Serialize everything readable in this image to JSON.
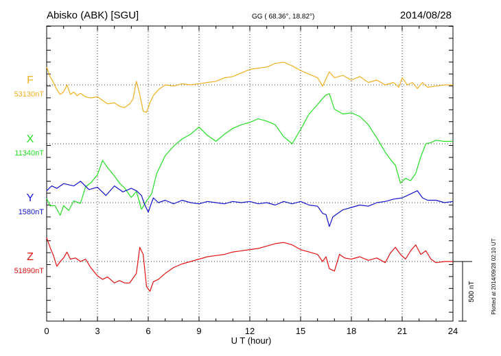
{
  "header": {
    "station": "Abisko (ABK)  [SGU]",
    "coords": "GG ( 68.36°,  18.82°)",
    "date": "2014/08/28"
  },
  "footer": {
    "plotted_note": "Plotted at 2014/09/28 02:10 UT"
  },
  "scale_bar": {
    "label": "500 nT",
    "value_nT": 500
  },
  "colors": {
    "F": "#f0b020",
    "X": "#22dd22",
    "Y": "#1010cc",
    "Z": "#e01010",
    "axis": "#000000",
    "grid": "#000000"
  },
  "chart_data": {
    "type": "line",
    "title": "",
    "xlabel": "U T (hour)",
    "ylabel": "",
    "xlim": [
      0,
      24
    ],
    "x_ticks": [
      "0",
      "3",
      "6",
      "9",
      "12",
      "15",
      "18",
      "21",
      "24"
    ],
    "grid": "dotted",
    "series": [
      {
        "name": "F",
        "baseline_label": "53130nT",
        "color": "#f0b020",
        "baseline_nT": 53130,
        "x": [
          0,
          0.2,
          0.4,
          0.6,
          0.8,
          1.0,
          1.2,
          1.4,
          1.6,
          1.8,
          2.0,
          2.3,
          2.6,
          3.0,
          3.3,
          3.6,
          4.0,
          4.3,
          4.6,
          4.9,
          5.1,
          5.3,
          5.5,
          5.7,
          5.9,
          6.1,
          6.3,
          6.6,
          7.0,
          7.5,
          8.0,
          8.5,
          9.0,
          9.5,
          10.0,
          10.5,
          11.0,
          11.5,
          12.0,
          12.5,
          13.0,
          13.5,
          14.0,
          14.5,
          15.0,
          15.5,
          16.0,
          16.3,
          16.5,
          16.7,
          17.0,
          17.5,
          18.0,
          18.5,
          19.0,
          19.5,
          20.0,
          20.5,
          20.8,
          21.0,
          21.3,
          21.6,
          21.9,
          22.2,
          22.5,
          23.0,
          23.5,
          24.0
        ],
        "values": [
          150,
          70,
          20,
          -40,
          -80,
          -60,
          0,
          -80,
          -60,
          -90,
          -70,
          -100,
          -110,
          -100,
          -130,
          -160,
          -150,
          -180,
          -190,
          -160,
          -120,
          30,
          -80,
          -220,
          -230,
          -150,
          -90,
          -40,
          0,
          -10,
          10,
          0,
          10,
          20,
          30,
          60,
          70,
          100,
          130,
          140,
          150,
          180,
          190,
          160,
          120,
          90,
          60,
          -10,
          50,
          110,
          60,
          80,
          40,
          70,
          20,
          40,
          0,
          20,
          -20,
          60,
          0,
          20,
          -30,
          20,
          -20,
          -10,
          0,
          0
        ]
      },
      {
        "name": "X",
        "baseline_label": "11340nT",
        "color": "#22dd22",
        "baseline_nT": 11340,
        "x": [
          0,
          0.2,
          0.5,
          0.8,
          1.0,
          1.3,
          1.6,
          2.0,
          2.3,
          2.6,
          3.0,
          3.3,
          3.6,
          4.0,
          4.3,
          4.6,
          5.0,
          5.3,
          5.6,
          5.9,
          6.2,
          6.5,
          7.0,
          7.5,
          8.0,
          8.5,
          9.0,
          9.5,
          10.0,
          10.5,
          11.0,
          11.5,
          12.0,
          12.5,
          13.0,
          13.5,
          14.0,
          14.5,
          15.0,
          15.5,
          16.0,
          16.3,
          16.5,
          16.7,
          17.0,
          17.5,
          18.0,
          18.5,
          19.0,
          19.5,
          20.0,
          20.3,
          20.6,
          20.9,
          21.2,
          21.5,
          21.8,
          22.1,
          22.4,
          22.7,
          23.0,
          23.5,
          24.0
        ],
        "values": [
          -460,
          -520,
          -520,
          -600,
          -520,
          -560,
          -480,
          -500,
          -360,
          -330,
          -260,
          -140,
          -200,
          -270,
          -330,
          -370,
          -450,
          -400,
          -550,
          -480,
          -420,
          -250,
          -100,
          -20,
          40,
          80,
          140,
          70,
          20,
          80,
          130,
          160,
          180,
          210,
          190,
          160,
          60,
          0,
          120,
          250,
          330,
          380,
          410,
          420,
          290,
          250,
          260,
          230,
          160,
          50,
          -70,
          -130,
          -180,
          -330,
          -290,
          -310,
          -250,
          -110,
          0,
          10,
          30,
          20,
          20
        ]
      },
      {
        "name": "Y",
        "baseline_label": "1580nT",
        "color": "#1010cc",
        "baseline_nT": 1580,
        "x": [
          0,
          0.3,
          0.6,
          1.0,
          1.3,
          1.6,
          2.0,
          2.5,
          3.0,
          3.5,
          4.0,
          4.5,
          5.0,
          5.3,
          5.6,
          5.8,
          6.0,
          6.3,
          6.6,
          7.0,
          7.5,
          8.0,
          8.5,
          9.0,
          9.5,
          10.0,
          10.5,
          11.0,
          11.5,
          12.0,
          12.5,
          13.0,
          13.5,
          14.0,
          14.5,
          15.0,
          15.5,
          16.0,
          16.3,
          16.5,
          16.7,
          16.9,
          17.1,
          17.5,
          18.0,
          18.5,
          19.0,
          19.5,
          20.0,
          20.5,
          21.0,
          21.3,
          21.6,
          21.9,
          22.2,
          22.5,
          23.0,
          23.5,
          24.0
        ],
        "values": [
          100,
          140,
          120,
          160,
          150,
          140,
          180,
          110,
          130,
          60,
          140,
          90,
          120,
          100,
          60,
          -20,
          -80,
          40,
          0,
          20,
          -10,
          20,
          0,
          -10,
          10,
          0,
          -10,
          10,
          0,
          10,
          -10,
          0,
          -20,
          10,
          -10,
          10,
          -20,
          -30,
          -90,
          -100,
          -200,
          -120,
          -100,
          -60,
          -40,
          -20,
          -30,
          0,
          10,
          30,
          40,
          60,
          80,
          100,
          40,
          20,
          20,
          0,
          10
        ]
      },
      {
        "name": "Z",
        "baseline_label": "51890nT",
        "color": "#e01010",
        "baseline_nT": 51890,
        "x": [
          0,
          0.2,
          0.4,
          0.6,
          0.8,
          1.0,
          1.2,
          1.4,
          1.7,
          2.0,
          2.3,
          2.6,
          3.0,
          3.3,
          3.6,
          4.0,
          4.3,
          4.6,
          4.9,
          5.1,
          5.3,
          5.5,
          5.7,
          5.9,
          6.1,
          6.3,
          6.6,
          7.0,
          7.5,
          8.0,
          8.5,
          9.0,
          9.5,
          10.0,
          10.5,
          11.0,
          11.5,
          12.0,
          12.5,
          13.0,
          13.5,
          14.0,
          14.5,
          15.0,
          15.5,
          16.0,
          16.3,
          16.5,
          16.7,
          17.0,
          17.3,
          17.6,
          18.0,
          18.5,
          19.0,
          19.5,
          20.0,
          20.3,
          20.6,
          20.9,
          21.2,
          21.5,
          21.8,
          22.1,
          22.4,
          22.7,
          23.0,
          23.5,
          24.0
        ],
        "values": [
          200,
          120,
          50,
          -40,
          0,
          30,
          80,
          20,
          30,
          0,
          20,
          -50,
          -120,
          -150,
          -130,
          -180,
          -160,
          -180,
          -180,
          -140,
          -100,
          120,
          60,
          -210,
          -250,
          -170,
          -150,
          -100,
          -50,
          -20,
          0,
          20,
          40,
          50,
          60,
          80,
          90,
          100,
          110,
          130,
          150,
          160,
          140,
          100,
          80,
          60,
          0,
          40,
          -60,
          -80,
          60,
          30,
          20,
          40,
          10,
          30,
          -10,
          70,
          120,
          60,
          20,
          90,
          140,
          60,
          90,
          20,
          -10,
          0,
          0
        ]
      }
    ]
  }
}
